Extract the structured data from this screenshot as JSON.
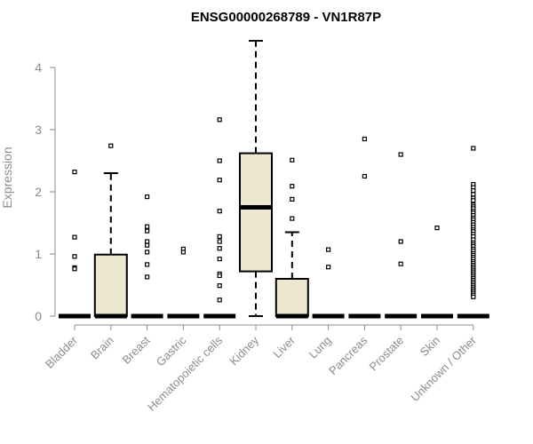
{
  "chart_data": {
    "type": "boxplot",
    "title": "ENSG00000268789 - VN1R87P",
    "ylabel": "Expression",
    "xlabel": "",
    "ylim": [
      0,
      4.4
    ],
    "yticks": [
      0,
      1,
      2,
      3,
      4
    ],
    "grid": false,
    "box_fill": "#ede8d0",
    "outline_color": "#000000",
    "axis_color": "#8c8c8c",
    "categories": [
      "Bladder",
      "Brain",
      "Breast",
      "Gastric",
      "Hematopoietic cells",
      "Kidney",
      "Liver",
      "Lung",
      "Pancreas",
      "Prostate",
      "Skin",
      "Unknown / Other"
    ],
    "boxes": [
      {
        "category": "Bladder",
        "q1": 0,
        "median": 0,
        "q3": 0,
        "whisker_low": 0,
        "whisker_high": 0,
        "outliers": [
          2.32,
          1.27,
          0.96,
          0.78,
          0.76
        ]
      },
      {
        "category": "Brain",
        "q1": 0,
        "median": 0,
        "q3": 0.99,
        "whisker_low": 0,
        "whisker_high": 2.3,
        "outliers": [
          2.74
        ]
      },
      {
        "category": "Breast",
        "q1": 0,
        "median": 0,
        "q3": 0,
        "whisker_low": 0,
        "whisker_high": 0,
        "outliers": [
          1.92,
          1.44,
          1.37,
          1.2,
          1.14,
          1.03,
          0.83,
          0.63
        ]
      },
      {
        "category": "Gastric",
        "q1": 0,
        "median": 0,
        "q3": 0,
        "whisker_low": 0,
        "whisker_high": 0,
        "outliers": [
          1.08,
          1.03
        ]
      },
      {
        "category": "Hematopoietic cells",
        "q1": 0,
        "median": 0,
        "q3": 0,
        "whisker_low": 0,
        "whisker_high": 0,
        "outliers": [
          3.16,
          2.5,
          2.19,
          1.69,
          1.28,
          1.2,
          1.09,
          0.92,
          0.68,
          0.65,
          0.49,
          0.26
        ]
      },
      {
        "category": "Kidney",
        "q1": 0.72,
        "median": 1.75,
        "q3": 2.62,
        "whisker_low": 0,
        "whisker_high": 4.43,
        "outliers": []
      },
      {
        "category": "Liver",
        "q1": 0,
        "median": 0,
        "q3": 0.6,
        "whisker_low": 0,
        "whisker_high": 1.35,
        "outliers": [
          2.51,
          2.09,
          1.88,
          1.57
        ]
      },
      {
        "category": "Lung",
        "q1": 0,
        "median": 0,
        "q3": 0,
        "whisker_low": 0,
        "whisker_high": 0,
        "outliers": [
          1.07,
          0.79
        ]
      },
      {
        "category": "Pancreas",
        "q1": 0,
        "median": 0,
        "q3": 0,
        "whisker_low": 0,
        "whisker_high": 0,
        "outliers": [
          2.85,
          2.25
        ]
      },
      {
        "category": "Prostate",
        "q1": 0,
        "median": 0,
        "q3": 0,
        "whisker_low": 0,
        "whisker_high": 0,
        "outliers": [
          2.6,
          1.2,
          0.84
        ]
      },
      {
        "category": "Skin",
        "q1": 0,
        "median": 0,
        "q3": 0,
        "whisker_low": 0,
        "whisker_high": 0,
        "outliers": [
          1.42
        ]
      },
      {
        "category": "Unknown / Other",
        "q1": 0,
        "median": 0,
        "q3": 0,
        "whisker_low": 0,
        "whisker_high": 0,
        "outliers": [
          2.7,
          2.12,
          2.07,
          2.02,
          1.96,
          1.9,
          1.86,
          1.79,
          1.76,
          1.73,
          1.69,
          1.66,
          1.62,
          1.58,
          1.55,
          1.51,
          1.47,
          1.43,
          1.39,
          1.36,
          1.32,
          1.28,
          1.23,
          1.18,
          1.15,
          1.12,
          1.08,
          1.05,
          1.01,
          0.98,
          0.95,
          0.92,
          0.88,
          0.85,
          0.82,
          0.79,
          0.76,
          0.73,
          0.7,
          0.67,
          0.64,
          0.61,
          0.58,
          0.55,
          0.52,
          0.49,
          0.46,
          0.43,
          0.4,
          0.37,
          0.34,
          0.31
        ]
      }
    ]
  }
}
